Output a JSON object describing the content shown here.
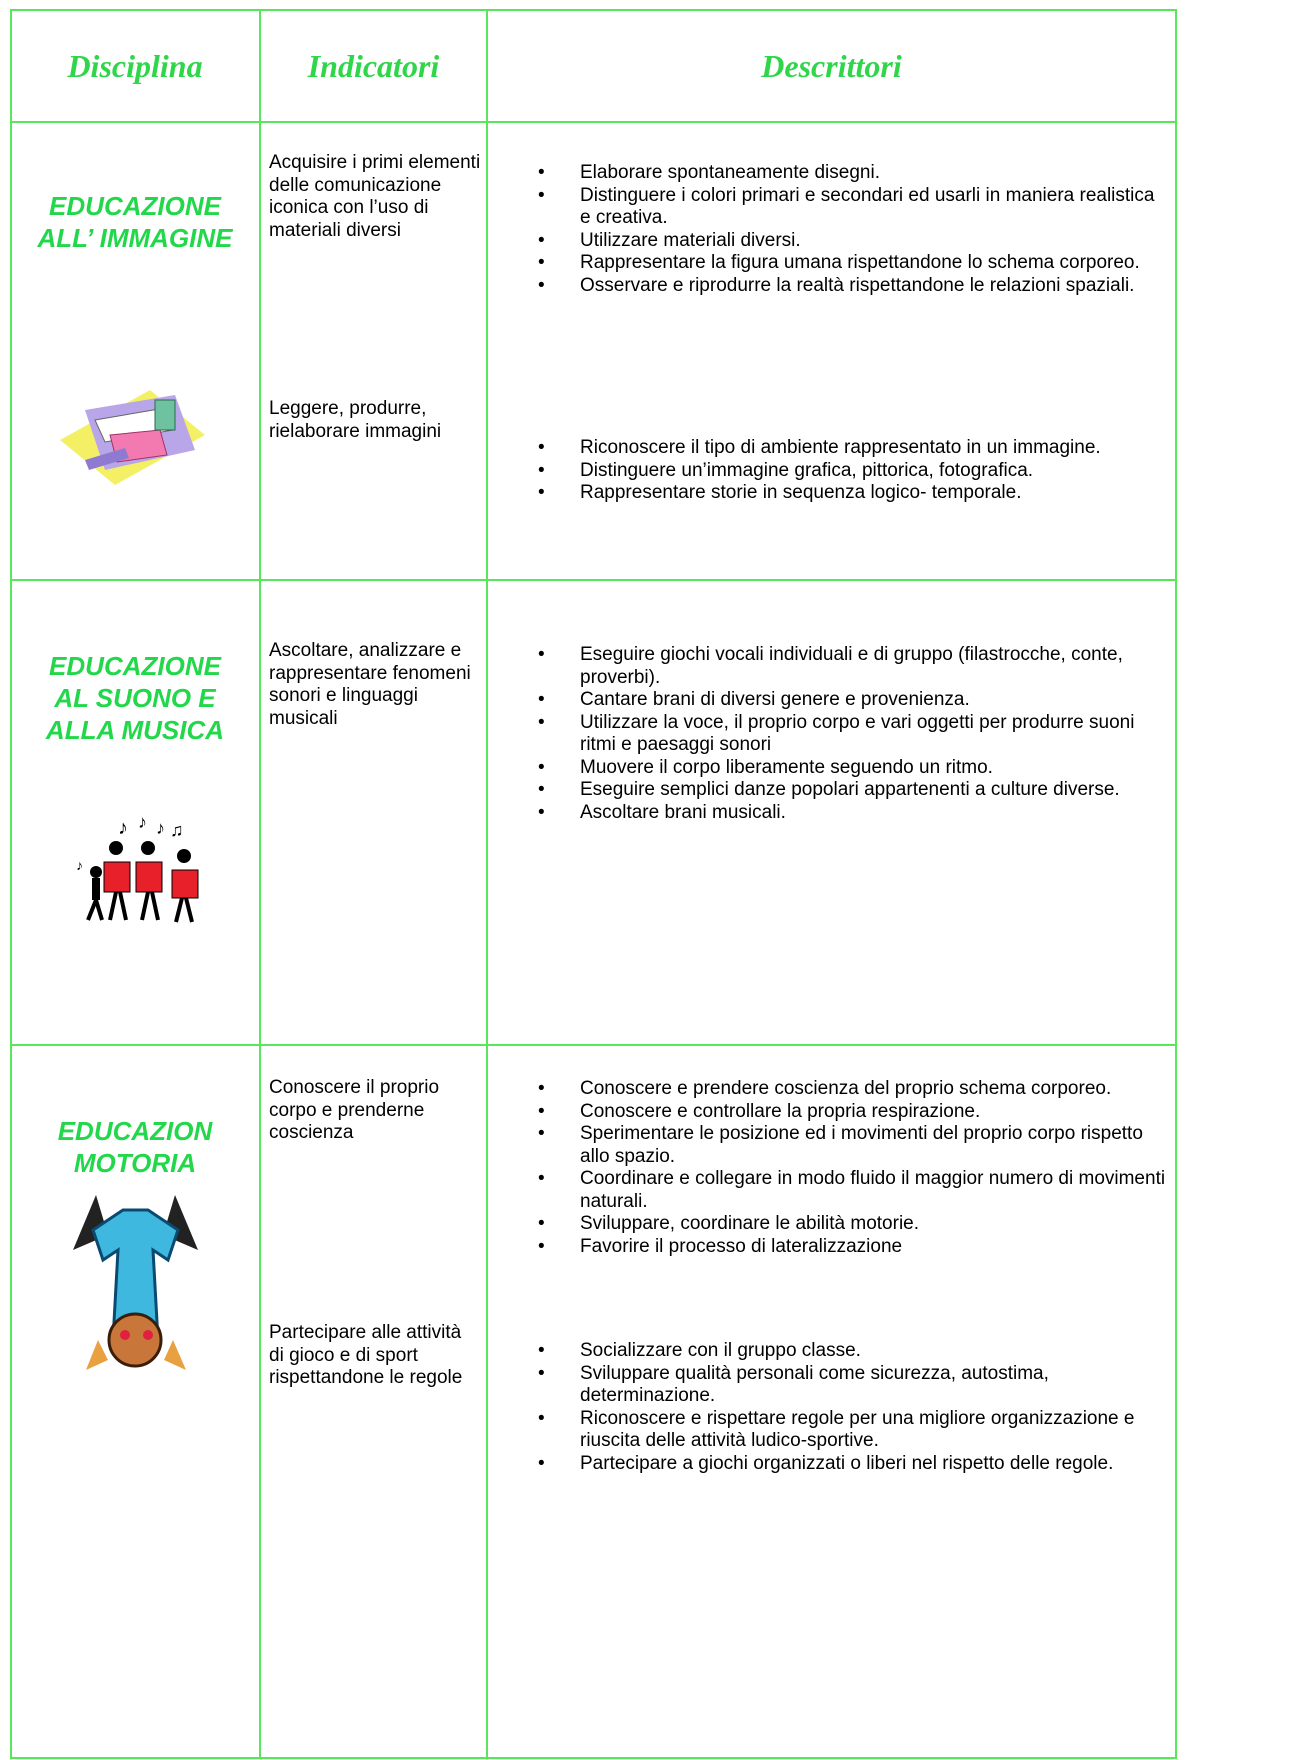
{
  "header": {
    "discipline": "Disciplina",
    "indicators": "Indicatori",
    "descriptors": "Descrittori"
  },
  "rows": [
    {
      "discipline": [
        "EDUCAZIONE",
        "ALL’ IMMAGINE"
      ],
      "groups": [
        {
          "indicator": "Acquisire i primi elementi delle comunicazione iconica con l’uso di materiali diversi",
          "items": [
            "Elaborare spontaneamente  disegni.",
            "Distinguere i colori primari e secondari ed usarli in maniera realistica e creativa.",
            "Utilizzare materiali diversi.",
            "Rappresentare la figura umana rispettandone lo schema corporeo.",
            "Osservare e riprodurre la realtà rispettandone le relazioni spaziali."
          ]
        },
        {
          "indicator": "Leggere, produrre, rielaborare immagini",
          "items": [
            "Riconoscere il tipo di ambiente rappresentato in un immagine.",
            "Distinguere un’immagine grafica, pittorica, fotografica.",
            "Rappresentare storie in sequenza logico- temporale."
          ]
        }
      ]
    },
    {
      "discipline": [
        "EDUCAZIONE",
        "AL SUONO E",
        "ALLA MUSICA"
      ],
      "groups": [
        {
          "indicator": "Ascoltare, analizzare e rappresentare fenomeni sonori e linguaggi musicali",
          "items": [
            "Eseguire giochi vocali individuali e di gruppo  (filastrocche, conte, proverbi).",
            "Cantare brani di diversi  genere e provenienza.",
            "Utilizzare la voce, il proprio corpo e vari oggetti per produrre suoni ritmi e paesaggi sonori",
            "Muovere il corpo liberamente seguendo un ritmo.",
            "Eseguire semplici danze popolari appartenenti a culture diverse.",
            "Ascoltare brani musicali."
          ]
        }
      ]
    },
    {
      "discipline": [
        "EDUCAZION",
        "MOTORIA"
      ],
      "groups": [
        {
          "indicator": "Conoscere il proprio corpo e prenderne coscienza",
          "items": [
            "Conoscere e prendere coscienza del proprio schema corporeo.",
            "Conoscere e controllare la propria respirazione.",
            "Sperimentare le posizione ed  i movimenti del proprio corpo rispetto allo spazio.",
            "Coordinare e collegare in modo fluido il maggior numero di movimenti naturali.",
            "Sviluppare, coordinare le abilità motorie.",
            "Favorire il processo di lateralizzazione"
          ]
        },
        {
          "indicator": "Partecipare alle attività di gioco e di sport rispettandone le regole",
          "items": [
            "Socializzare con il gruppo classe.",
            "Sviluppare qualità personali come sicurezza, autostima, determinazione.",
            "Riconoscere e rispettare regole per una migliore organizzazione e riuscita delle attività ludico-sportive.",
            "Partecipare a giochi organizzati o liberi nel rispetto delle regole."
          ]
        }
      ]
    }
  ]
}
